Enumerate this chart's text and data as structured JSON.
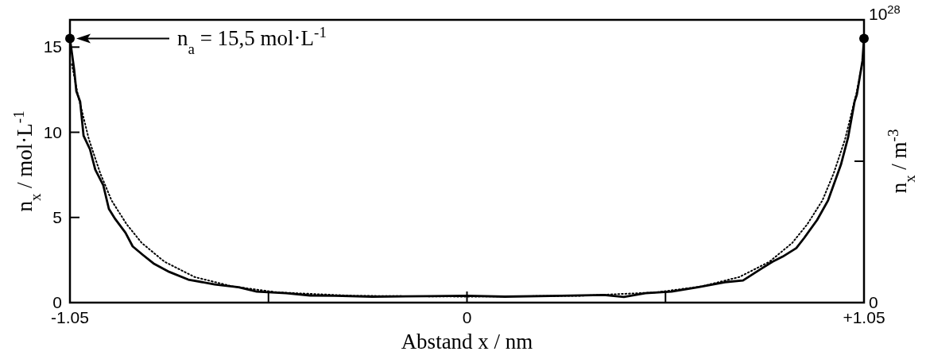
{
  "chart_data": {
    "type": "line",
    "xlabel": "Abstand x / nm",
    "ylabel": "n$_{x}$ / mol·L$^{-1}$",
    "y2label": "n$_{x}$ / m$^{-3}$",
    "xlim": [
      -1.05,
      1.05
    ],
    "xticks": [
      -1.05,
      {
        "value": -0.525,
        "label": null
      },
      0,
      {
        "value": 0.525,
        "label": null
      },
      {
        "value": 1.05,
        "label": "+1.05"
      }
    ],
    "ylim": [
      0,
      16.6
    ],
    "yticks": [
      0,
      5,
      10,
      15
    ],
    "y2lim": [
      0,
      1e+28
    ],
    "y2ticks": [
      0,
      {
        "value": 5e+27,
        "label": null
      },
      {
        "value": 1e+28,
        "label": "10$^{28}$"
      }
    ],
    "annotations": [
      "n$_{a}$ = 15,5 mol·L$^{-1}$"
    ],
    "series": [
      {
        "color": "#000000",
        "line_style": "solid",
        "x": [
          -1.05,
          -1.039,
          -1.033,
          -1.023,
          -1.014,
          -0.997,
          -0.983,
          -0.962,
          -0.947,
          -0.93,
          -0.903,
          -0.884,
          -0.857,
          -0.829,
          -0.787,
          -0.737,
          -0.667,
          -0.604,
          -0.556,
          -0.478,
          -0.415,
          -0.35,
          -0.25,
          -0.1,
          0,
          0.1,
          0.25,
          0.363,
          0.415,
          0.472,
          0.541,
          0.611,
          0.682,
          0.73,
          0.779,
          0.808,
          0.835,
          0.871,
          0.892,
          0.926,
          0.955,
          0.989,
          1.008,
          1.025,
          1.031,
          1.046,
          1.05
        ],
        "values": [
          15.5,
          13.7,
          12.4,
          11.8,
          9.8,
          9.0,
          7.8,
          6.9,
          5.5,
          4.9,
          4.1,
          3.3,
          2.8,
          2.3,
          1.8,
          1.35,
          1.07,
          0.9,
          0.65,
          0.55,
          0.42,
          0.4,
          0.35,
          0.38,
          0.4,
          0.35,
          0.4,
          0.45,
          0.33,
          0.55,
          0.65,
          0.9,
          1.2,
          1.3,
          2.0,
          2.4,
          2.7,
          3.2,
          3.8,
          4.85,
          6.0,
          8.1,
          9.7,
          11.8,
          12.2,
          14.2,
          15.5
        ]
      },
      {
        "color": "#000000",
        "line_style": "dotted",
        "x": [
          -1.045,
          -1.03,
          -1.0,
          -0.97,
          -0.94,
          -0.9,
          -0.86,
          -0.8,
          -0.72,
          -0.62,
          -0.5,
          -0.3,
          0,
          0.3,
          0.5,
          0.62,
          0.72,
          0.8,
          0.86,
          0.9,
          0.94,
          0.97,
          1.0,
          1.03,
          1.045
        ],
        "values": [
          14,
          12.3,
          9.6,
          7.6,
          6.0,
          4.6,
          3.5,
          2.4,
          1.5,
          0.95,
          0.6,
          0.4,
          0.35,
          0.4,
          0.6,
          0.95,
          1.5,
          2.4,
          3.5,
          4.6,
          6.0,
          7.6,
          9.6,
          12.3,
          14
        ]
      },
      {
        "type": "scatter",
        "color": "#000000",
        "marker": "circle",
        "x": [
          -1.05,
          1.05
        ],
        "values": [
          15.5,
          15.5
        ]
      }
    ]
  }
}
